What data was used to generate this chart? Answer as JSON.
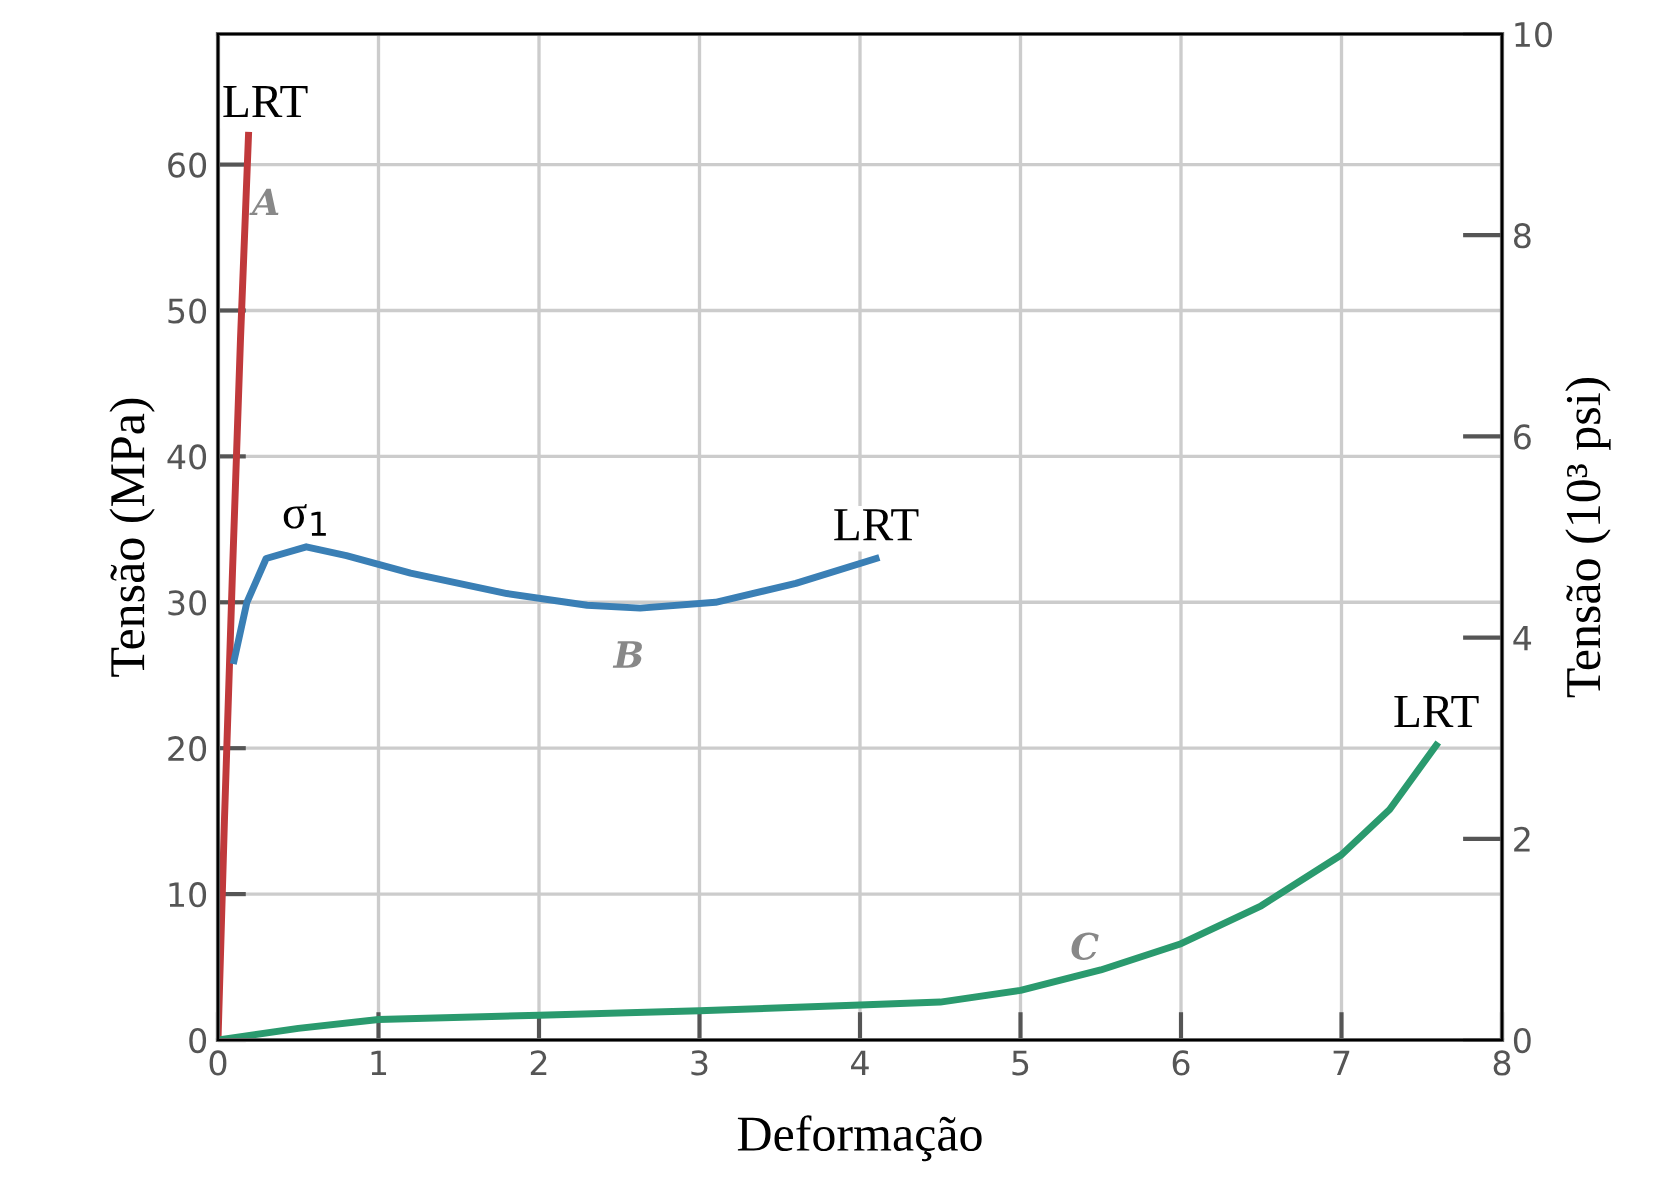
{
  "chart_data": {
    "type": "line",
    "xlabel": "Deformação",
    "ylabel": "Tensão (MPa)",
    "y2label": "Tensão (10³ psi)",
    "xlim": [
      0,
      8
    ],
    "xticks": [
      0,
      1,
      2,
      3,
      4,
      5,
      6,
      7,
      8
    ],
    "ylim": [
      0,
      68.95
    ],
    "yticks": [
      0,
      10,
      20,
      30,
      40,
      50,
      60
    ],
    "y2lim": [
      0,
      10
    ],
    "y2ticks": [
      0,
      2,
      4,
      6,
      8,
      10
    ],
    "grid": true,
    "line_style": "solid",
    "series": [
      {
        "color": "#c0393b",
        "x": [
          0,
          0.04,
          0.09,
          0.14,
          0.19
        ],
        "values": [
          0,
          15,
          32,
          48,
          62
        ]
      },
      {
        "color": "#3a7fb5",
        "x": [
          0.1,
          0.18,
          0.3,
          0.55,
          0.8,
          1.2,
          1.8,
          2.3,
          2.63,
          3.1,
          3.6,
          4.1
        ],
        "values": [
          26,
          30,
          33,
          33.8,
          33.2,
          32,
          30.6,
          29.8,
          29.6,
          30,
          31.3,
          33
        ]
      },
      {
        "color": "#2a9a6e",
        "x": [
          0,
          0.5,
          1,
          2,
          3,
          4,
          4.5,
          5,
          5.5,
          6,
          6.5,
          7,
          7.3,
          7.59
        ],
        "values": [
          0,
          0.8,
          1.4,
          1.7,
          2,
          2.4,
          2.6,
          3.4,
          4.8,
          6.6,
          9.2,
          12.7,
          15.8,
          20.2
        ]
      }
    ],
    "annotations": [
      {
        "text": "LRT",
        "x": 0.19,
        "y": 62
      },
      {
        "text": "LRT",
        "x": 4.1,
        "y": 33
      },
      {
        "text": "LRT",
        "x": 7.59,
        "y": 20.2
      },
      {
        "text": "σ$_{1}$",
        "x": 0.55,
        "y": 33.8
      },
      "A",
      "B",
      "C"
    ]
  }
}
